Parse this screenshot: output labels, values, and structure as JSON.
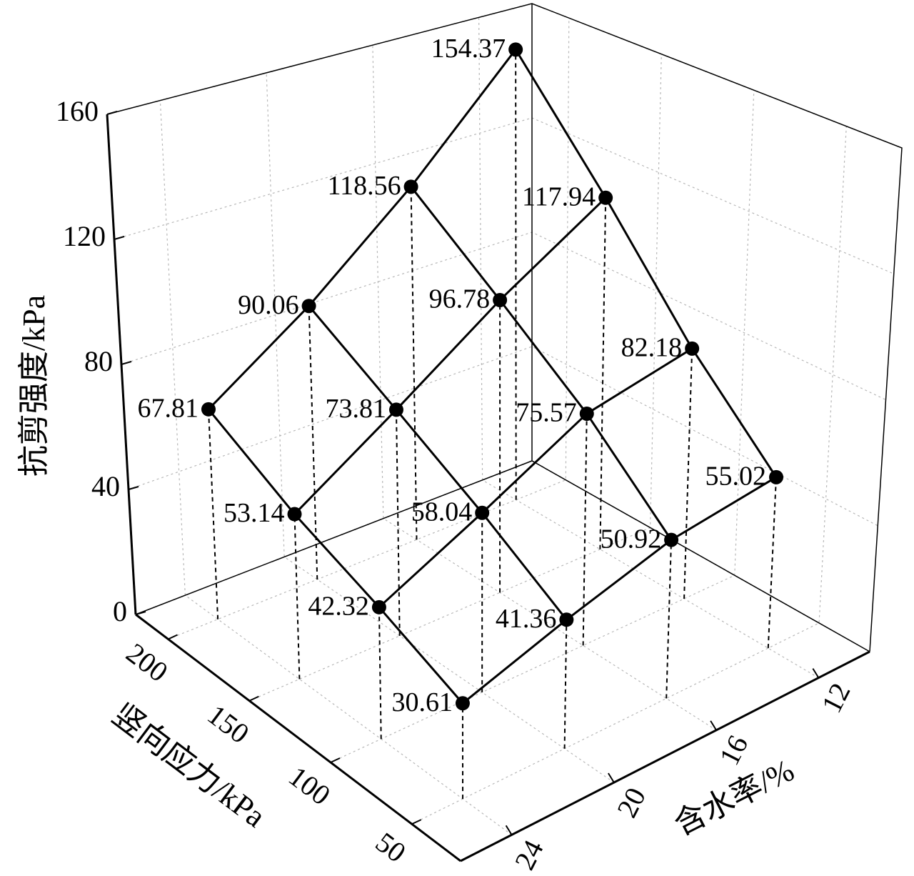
{
  "chart_data": {
    "type": "surface3d",
    "x_label": "含水率/%",
    "y_label": "竖向应力/kPa",
    "z_label": "抗剪强度/kPa",
    "x": [
      12,
      16,
      20,
      24
    ],
    "y": [
      50,
      100,
      150,
      200
    ],
    "z": [
      [
        55.02,
        82.18,
        117.94,
        154.37
      ],
      [
        50.92,
        75.57,
        96.78,
        118.56
      ],
      [
        41.36,
        58.04,
        73.81,
        90.06
      ],
      [
        30.61,
        42.32,
        53.14,
        67.81
      ]
    ],
    "xlim": [
      10,
      26
    ],
    "ylim": [
      20,
      220
    ],
    "zlim": [
      0,
      160
    ],
    "xticks": [
      12,
      16,
      20,
      24
    ],
    "yticks": [
      50,
      100,
      150,
      200
    ],
    "zticks": [
      0,
      40,
      80,
      120,
      160
    ],
    "grid": true,
    "color": "#000000"
  }
}
